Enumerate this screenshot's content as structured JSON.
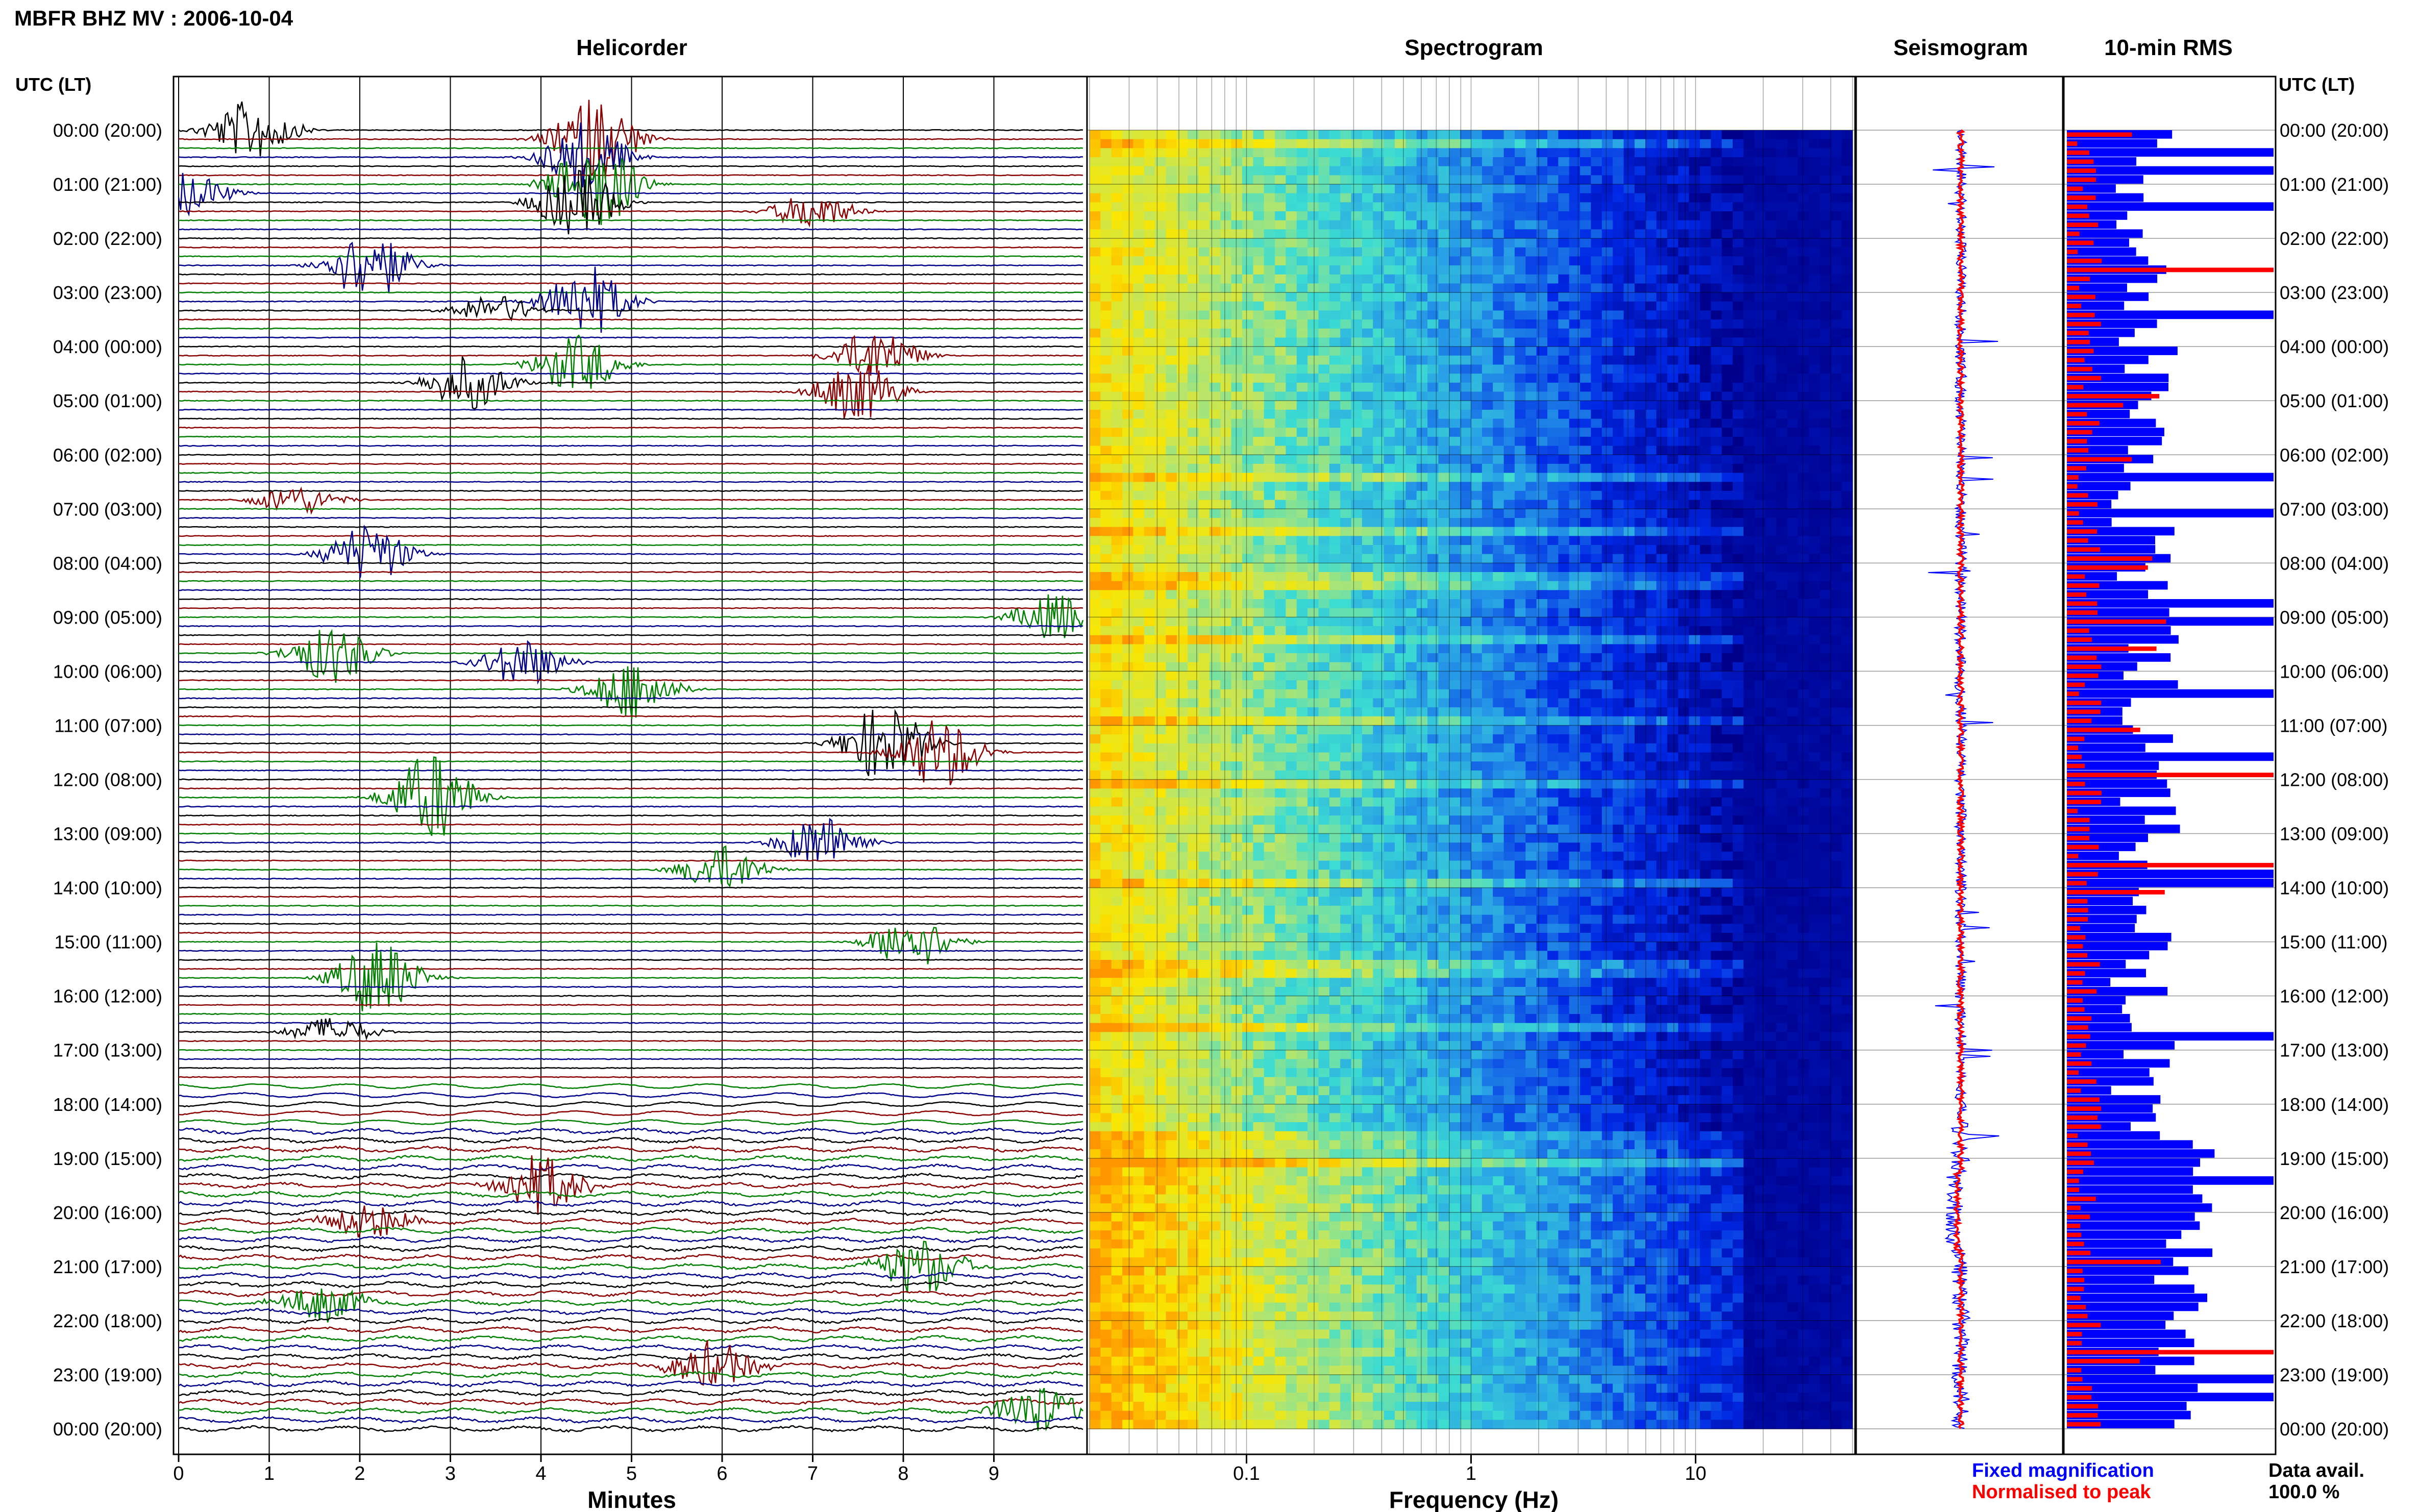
{
  "header": {
    "station_title": "MBFR BHZ MV : 2006-10-04",
    "left_time_header": "UTC (LT)",
    "right_time_header": "UTC (LT)"
  },
  "panels": {
    "helicorder_title": "Helicorder",
    "spectrogram_title": "Spectrogram",
    "seismogram_title": "Seismogram",
    "rms_title": "10-min RMS"
  },
  "time_labels": [
    "00:00 (20:00)",
    "01:00 (21:00)",
    "02:00 (22:00)",
    "03:00 (23:00)",
    "04:00 (00:00)",
    "05:00 (01:00)",
    "06:00 (02:00)",
    "07:00 (03:00)",
    "08:00 (04:00)",
    "09:00 (05:00)",
    "10:00 (06:00)",
    "11:00 (07:00)",
    "12:00 (08:00)",
    "13:00 (09:00)",
    "14:00 (10:00)",
    "15:00 (11:00)",
    "16:00 (12:00)",
    "17:00 (13:00)",
    "18:00 (14:00)",
    "19:00 (15:00)",
    "20:00 (16:00)",
    "21:00 (17:00)",
    "22:00 (18:00)",
    "23:00 (19:00)",
    "00:00 (20:00)"
  ],
  "legend": {
    "fixed_magnification": "Fixed magnification",
    "normalised_to_peak": "Normalised to peak",
    "data_avail_label": "Data avail.",
    "data_avail_value": "100.0 %"
  },
  "colors": {
    "trace_cycle": [
      "#000000",
      "#8b0000",
      "#008000",
      "#00008b"
    ],
    "fixed_magnification": "#0000ff",
    "normalised_to_peak": "#ff0000",
    "spectro_low": "#00008b",
    "spectro_high": "#ffa500"
  },
  "chart_data": [
    {
      "type": "helicorder",
      "title": "Helicorder",
      "xlabel": "Minutes",
      "x_ticks": [
        "0",
        "1",
        "2",
        "3",
        "4",
        "5",
        "6",
        "7",
        "8",
        "9"
      ],
      "x_range": [
        0,
        10
      ],
      "rows": 144,
      "events": [
        {
          "row": 0,
          "minute": 0.8,
          "amplitude": 1.0
        },
        {
          "row": 1,
          "minute": 4.6,
          "amplitude": 1.4
        },
        {
          "row": 3,
          "minute": 4.5,
          "amplitude": 1.2
        },
        {
          "row": 6,
          "minute": 4.6,
          "amplitude": 1.6
        },
        {
          "row": 7,
          "minute": 0.1,
          "amplitude": 0.7
        },
        {
          "row": 8,
          "minute": 4.4,
          "amplitude": 1.1
        },
        {
          "row": 9,
          "minute": 7.0,
          "amplitude": 0.6
        },
        {
          "row": 15,
          "minute": 2.1,
          "amplitude": 1.2
        },
        {
          "row": 19,
          "minute": 4.5,
          "amplitude": 1.2
        },
        {
          "row": 20,
          "minute": 3.5,
          "amplitude": 0.5
        },
        {
          "row": 25,
          "minute": 7.7,
          "amplitude": 0.9
        },
        {
          "row": 26,
          "minute": 4.4,
          "amplitude": 1.0
        },
        {
          "row": 28,
          "minute": 3.2,
          "amplitude": 0.9
        },
        {
          "row": 29,
          "minute": 7.5,
          "amplitude": 1.0
        },
        {
          "row": 41,
          "minute": 1.3,
          "amplitude": 0.5
        },
        {
          "row": 47,
          "minute": 2.1,
          "amplitude": 1.0
        },
        {
          "row": 54,
          "minute": 9.7,
          "amplitude": 0.8
        },
        {
          "row": 58,
          "minute": 1.7,
          "amplitude": 1.0
        },
        {
          "row": 59,
          "minute": 3.8,
          "amplitude": 0.8
        },
        {
          "row": 62,
          "minute": 5.0,
          "amplitude": 1.0
        },
        {
          "row": 68,
          "minute": 7.8,
          "amplitude": 1.3
        },
        {
          "row": 69,
          "minute": 8.4,
          "amplitude": 1.2
        },
        {
          "row": 74,
          "minute": 2.8,
          "amplitude": 1.5
        },
        {
          "row": 79,
          "minute": 7.1,
          "amplitude": 0.9
        },
        {
          "row": 82,
          "minute": 6.0,
          "amplitude": 0.8
        },
        {
          "row": 90,
          "minute": 8.1,
          "amplitude": 0.9
        },
        {
          "row": 94,
          "minute": 2.2,
          "amplitude": 1.3
        },
        {
          "row": 100,
          "minute": 1.7,
          "amplitude": 0.5
        },
        {
          "row": 117,
          "minute": 4.0,
          "amplitude": 1.0
        },
        {
          "row": 121,
          "minute": 2.1,
          "amplitude": 0.6
        },
        {
          "row": 126,
          "minute": 8.2,
          "amplitude": 1.0
        },
        {
          "row": 130,
          "minute": 1.6,
          "amplitude": 0.6
        },
        {
          "row": 137,
          "minute": 5.9,
          "amplitude": 0.8
        },
        {
          "row": 142,
          "minute": 9.5,
          "amplitude": 0.9
        }
      ]
    },
    {
      "type": "heatmap",
      "title": "Spectrogram",
      "xlabel": "Frequency (Hz)",
      "x_scale": "log",
      "x_range": [
        0.02,
        50
      ],
      "x_ticks": [
        "0.1",
        "1",
        "10"
      ],
      "y": "time of day (UTC)"
    },
    {
      "type": "line",
      "title": "Seismogram",
      "series": [
        {
          "name": "Fixed magnification"
        },
        {
          "name": "Normalised to peak"
        }
      ]
    },
    {
      "type": "bar",
      "title": "10-min RMS",
      "orientation": "horizontal",
      "bins": 144,
      "series": [
        {
          "name": "Fixed magnification",
          "value_range": [
            0.2,
            1.0
          ]
        },
        {
          "name": "Normalised to peak",
          "value_range": [
            0.05,
            1.0
          ]
        }
      ]
    }
  ]
}
